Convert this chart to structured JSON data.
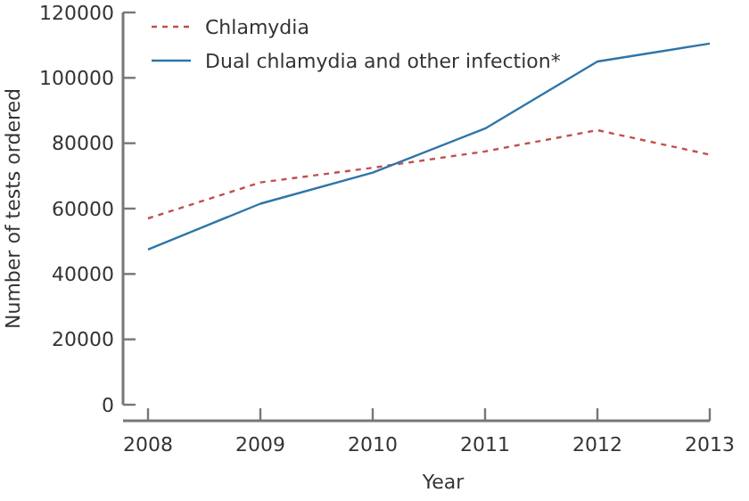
{
  "chart_data": {
    "type": "line",
    "xlabel": "Year",
    "ylabel": "Number of tests ordered",
    "categories": [
      "2008",
      "2009",
      "2010",
      "2011",
      "2012",
      "2013"
    ],
    "series": [
      {
        "name": "Chlamydia",
        "color": "#c0504d",
        "line_style": "dashed",
        "values": [
          57000,
          68000,
          72500,
          77500,
          84000,
          76500
        ]
      },
      {
        "name": "Dual chlamydia and other infection*",
        "color": "#2e75a8",
        "line_style": "solid",
        "values": [
          47500,
          61500,
          71000,
          84500,
          105000,
          110500
        ]
      }
    ],
    "ylim": [
      0,
      120000
    ],
    "yticks": [
      0,
      20000,
      40000,
      60000,
      80000,
      100000,
      120000
    ],
    "legend": "top left",
    "grid": false
  }
}
